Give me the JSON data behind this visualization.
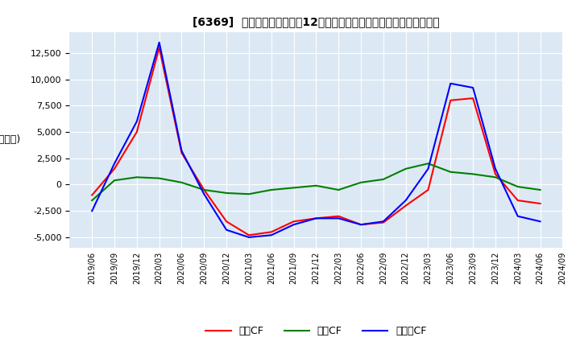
{
  "title": "[6369]  キャッシュフローの12か月移動合計の対前年同期増減額の推移",
  "ylabel": "(百万円)",
  "ylim": [
    -6000,
    14500
  ],
  "yticks": [
    -5000,
    -2500,
    0,
    2500,
    5000,
    7500,
    10000,
    12500
  ],
  "dates": [
    "2019/06",
    "2019/09",
    "2019/12",
    "2020/03",
    "2020/06",
    "2020/09",
    "2020/12",
    "2021/03",
    "2021/06",
    "2021/09",
    "2021/12",
    "2022/03",
    "2022/06",
    "2022/09",
    "2022/12",
    "2023/03",
    "2023/06",
    "2023/09",
    "2023/12",
    "2024/03",
    "2024/06",
    "2024/09"
  ],
  "operating_cf": [
    -1000,
    1500,
    5000,
    13000,
    3000,
    -500,
    -3500,
    -4800,
    -4500,
    -3500,
    -3200,
    -3000,
    -3800,
    -3600,
    -2000,
    -500,
    8000,
    8200,
    1000,
    -1500,
    -1800,
    null
  ],
  "investing_cf": [
    -1500,
    400,
    700,
    600,
    200,
    -500,
    -800,
    -900,
    -500,
    -300,
    -100,
    -500,
    200,
    500,
    1500,
    2000,
    1200,
    1000,
    700,
    -200,
    -500,
    null
  ],
  "free_cf": [
    -2500,
    2000,
    6000,
    13500,
    3200,
    -900,
    -4300,
    -5000,
    -4800,
    -3800,
    -3200,
    -3200,
    -3800,
    -3500,
    -1500,
    1500,
    9600,
    9200,
    1500,
    -3000,
    -3500,
    null
  ],
  "operating_color": "#FF0000",
  "investing_color": "#008000",
  "free_color": "#0000FF",
  "bg_color": "#ffffff",
  "plot_bg_color": "#dce9f5",
  "grid_color": "#ffffff",
  "legend_labels": [
    "営業CF",
    "投資CF",
    "フリーCF"
  ]
}
